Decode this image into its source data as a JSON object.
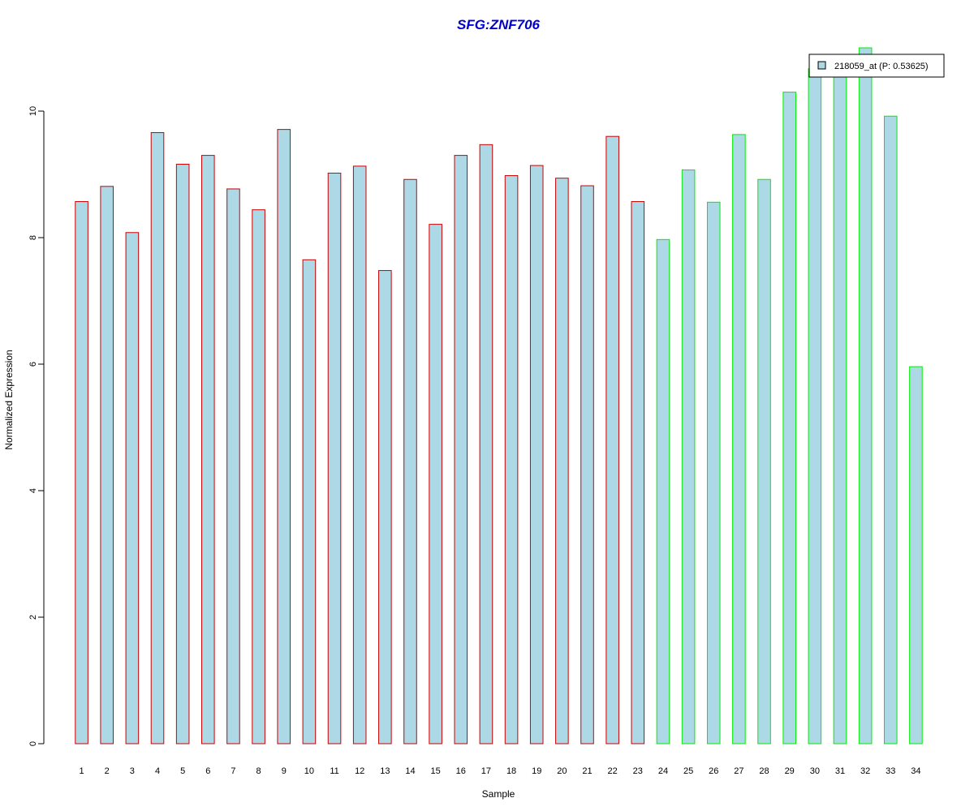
{
  "chart_data": {
    "type": "bar",
    "title": "SFG:ZNF706",
    "xlabel": "Sample",
    "ylabel": "Normalized Expression",
    "ylim": [
      0,
      11
    ],
    "yticks": [
      "0",
      "2",
      "4",
      "6",
      "8",
      "10"
    ],
    "grid": false,
    "legend_position": "top-right",
    "categories": [
      "1",
      "2",
      "3",
      "4",
      "5",
      "6",
      "7",
      "8",
      "9",
      "10",
      "11",
      "12",
      "13",
      "14",
      "15",
      "16",
      "17",
      "18",
      "19",
      "20",
      "21",
      "22",
      "23",
      "24",
      "25",
      "26",
      "27",
      "28",
      "29",
      "30",
      "31",
      "32",
      "33",
      "34"
    ],
    "series": [
      {
        "name": "218059_at (P: 0.53625)",
        "values": [
          8.57,
          8.81,
          8.08,
          9.66,
          9.16,
          9.3,
          8.77,
          8.44,
          9.71,
          7.65,
          9.02,
          9.13,
          7.48,
          8.92,
          8.21,
          9.3,
          9.47,
          8.98,
          9.14,
          8.94,
          8.82,
          9.6,
          8.57,
          7.97,
          9.07,
          8.56,
          9.63,
          8.92,
          10.3,
          10.67,
          10.6,
          11.0,
          9.92,
          5.96
        ]
      }
    ],
    "groups": [
      {
        "samples_from": 1,
        "samples_to": 23,
        "border_color": "#cc0000"
      },
      {
        "samples_from": 24,
        "samples_to": 34,
        "border_color": "#00ee00"
      }
    ],
    "colors": {
      "bar_fill": "#add8e6",
      "title": "#0000cc",
      "axis": "#000000"
    }
  }
}
